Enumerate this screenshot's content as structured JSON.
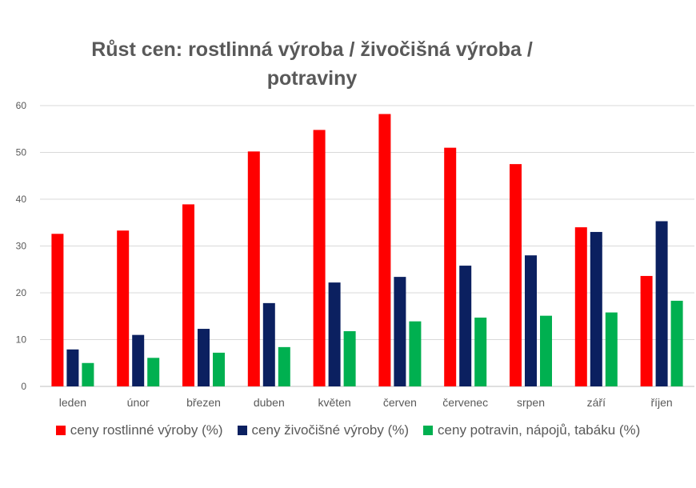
{
  "chart_data": {
    "type": "bar",
    "title_line1": "Růst cen: rostlinná výroba / živočišná výroba /",
    "title_line2": "potraviny",
    "categories": [
      "leden",
      "únor",
      "březen",
      "duben",
      "květen",
      "červen",
      "červenec",
      "srpen",
      "září",
      "říjen"
    ],
    "series": [
      {
        "name": "ceny rostlinné výroby (%)",
        "color": "#ff0000",
        "values": [
          32.6,
          33.3,
          38.9,
          50.2,
          54.8,
          58.2,
          51.0,
          47.5,
          34.0,
          23.6
        ]
      },
      {
        "name": "ceny živočišné výroby (%)",
        "color": "#0b2060",
        "values": [
          7.9,
          11.0,
          12.3,
          17.8,
          22.2,
          23.4,
          25.8,
          28.0,
          33.0,
          35.3
        ]
      },
      {
        "name": "ceny potravin, nápojů, tabáku (%)",
        "color": "#00b050",
        "values": [
          5.0,
          6.1,
          7.2,
          8.4,
          11.8,
          13.9,
          14.7,
          15.1,
          15.8,
          18.3
        ]
      }
    ],
    "yticks": [
      "0",
      "10",
      "20",
      "30",
      "40",
      "50",
      "60"
    ],
    "ylim": [
      0,
      60
    ],
    "grid": true,
    "legend_position": "bottom"
  }
}
